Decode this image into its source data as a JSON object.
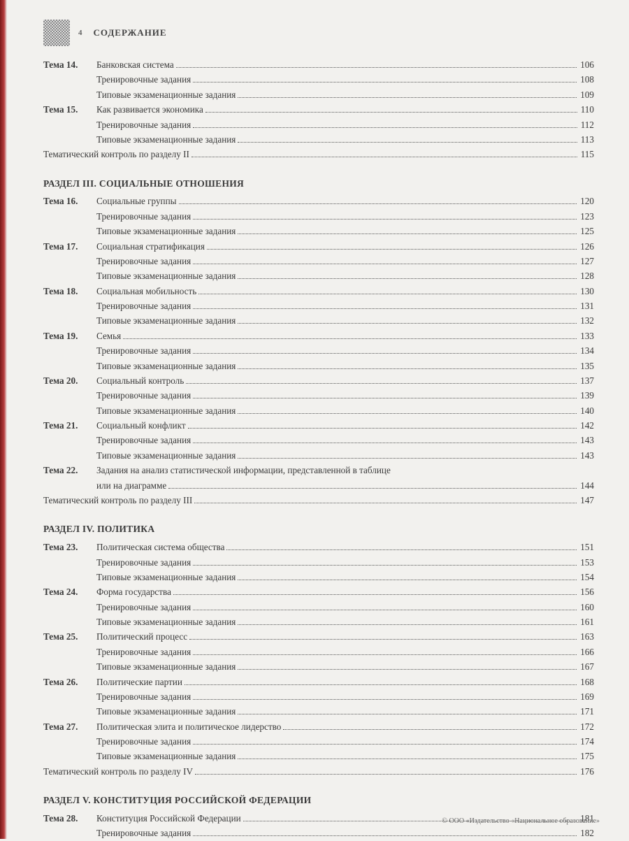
{
  "header": {
    "page_number": "4",
    "title": "СОДЕРЖАНИЕ"
  },
  "footer": "© ООО «Издательство «Национальное образование»",
  "labels": {
    "tema": "Тема"
  },
  "sections": [
    {
      "heading": null,
      "rows": [
        {
          "label": "Тема 14.",
          "title": "Банковская система",
          "page": "106"
        },
        {
          "label": "",
          "title": "Тренировочные задания",
          "page": "108"
        },
        {
          "label": "",
          "title": "Типовые экзаменационные задания",
          "page": "109"
        },
        {
          "label": "Тема 15.",
          "title": "Как развивается экономика",
          "page": "110"
        },
        {
          "label": "",
          "title": "Тренировочные задания",
          "page": "112"
        },
        {
          "label": "",
          "title": "Типовые экзаменационные задания",
          "page": "113"
        },
        {
          "label": null,
          "title": "Тематический контроль по разделу II",
          "page": "115"
        }
      ]
    },
    {
      "heading": "РАЗДЕЛ III. СОЦИАЛЬНЫЕ ОТНОШЕНИЯ",
      "rows": [
        {
          "label": "Тема 16.",
          "title": "Социальные группы",
          "page": "120"
        },
        {
          "label": "",
          "title": "Тренировочные задания",
          "page": "123"
        },
        {
          "label": "",
          "title": "Типовые экзаменационные задания",
          "page": "125"
        },
        {
          "label": "Тема 17.",
          "title": "Социальная стратификация",
          "page": "126"
        },
        {
          "label": "",
          "title": "Тренировочные задания",
          "page": "127"
        },
        {
          "label": "",
          "title": "Типовые экзаменационные задания",
          "page": "128"
        },
        {
          "label": "Тема 18.",
          "title": "Социальная мобильность",
          "page": "130"
        },
        {
          "label": "",
          "title": "Тренировочные задания",
          "page": "131"
        },
        {
          "label": "",
          "title": "Типовые экзаменационные задания",
          "page": "132"
        },
        {
          "label": "Тема 19.",
          "title": "Семья",
          "page": "133"
        },
        {
          "label": "",
          "title": "Тренировочные задания",
          "page": "134"
        },
        {
          "label": "",
          "title": "Типовые экзаменационные задания",
          "page": "135"
        },
        {
          "label": "Тема 20.",
          "title": "Социальный контроль",
          "page": "137"
        },
        {
          "label": "",
          "title": "Тренировочные задания",
          "page": "139"
        },
        {
          "label": "",
          "title": "Типовые экзаменационные задания",
          "page": "140"
        },
        {
          "label": "Тема 21.",
          "title": "Социальный конфликт",
          "page": "142"
        },
        {
          "label": "",
          "title": "Тренировочные задания",
          "page": "143"
        },
        {
          "label": "",
          "title": "Типовые экзаменационные задания",
          "page": "143"
        },
        {
          "label": "Тема 22.",
          "title": "Задания на анализ статистической информации, представленной в таблице",
          "title2": "или на диаграмме",
          "page": "144"
        },
        {
          "label": null,
          "title": "Тематический контроль по разделу III",
          "page": "147"
        }
      ]
    },
    {
      "heading": "РАЗДЕЛ IV. ПОЛИТИКА",
      "rows": [
        {
          "label": "Тема 23.",
          "title": "Политическая система общества",
          "page": "151"
        },
        {
          "label": "",
          "title": "Тренировочные задания",
          "page": "153"
        },
        {
          "label": "",
          "title": "Типовые экзаменационные задания",
          "page": "154"
        },
        {
          "label": "Тема 24.",
          "title": "Форма государства",
          "page": "156"
        },
        {
          "label": "",
          "title": "Тренировочные задания",
          "page": "160"
        },
        {
          "label": "",
          "title": "Типовые экзаменационные задания",
          "page": "161"
        },
        {
          "label": "Тема 25.",
          "title": "Политический процесс",
          "page": "163"
        },
        {
          "label": "",
          "title": "Тренировочные задания",
          "page": "166"
        },
        {
          "label": "",
          "title": "Типовые экзаменационные задания",
          "page": "167"
        },
        {
          "label": "Тема 26.",
          "title": "Политические партии",
          "page": "168"
        },
        {
          "label": "",
          "title": "Тренировочные задания",
          "page": "169"
        },
        {
          "label": "",
          "title": "Типовые экзаменационные задания",
          "page": "171"
        },
        {
          "label": "Тема 27.",
          "title": "Политическая элита и политическое лидерство",
          "page": "172"
        },
        {
          "label": "",
          "title": "Тренировочные задания",
          "page": "174"
        },
        {
          "label": "",
          "title": "Типовые экзаменационные задания",
          "page": "175"
        },
        {
          "label": null,
          "title": "Тематический контроль по разделу IV",
          "page": "176"
        }
      ]
    },
    {
      "heading": "РАЗДЕЛ V. КОНСТИТУЦИЯ РОССИЙСКОЙ ФЕДЕРАЦИИ",
      "rows": [
        {
          "label": "Тема 28.",
          "title": "Конституция Российской Федерации",
          "page": "181"
        },
        {
          "label": "",
          "title": "Тренировочные задания",
          "page": "182"
        }
      ]
    }
  ]
}
